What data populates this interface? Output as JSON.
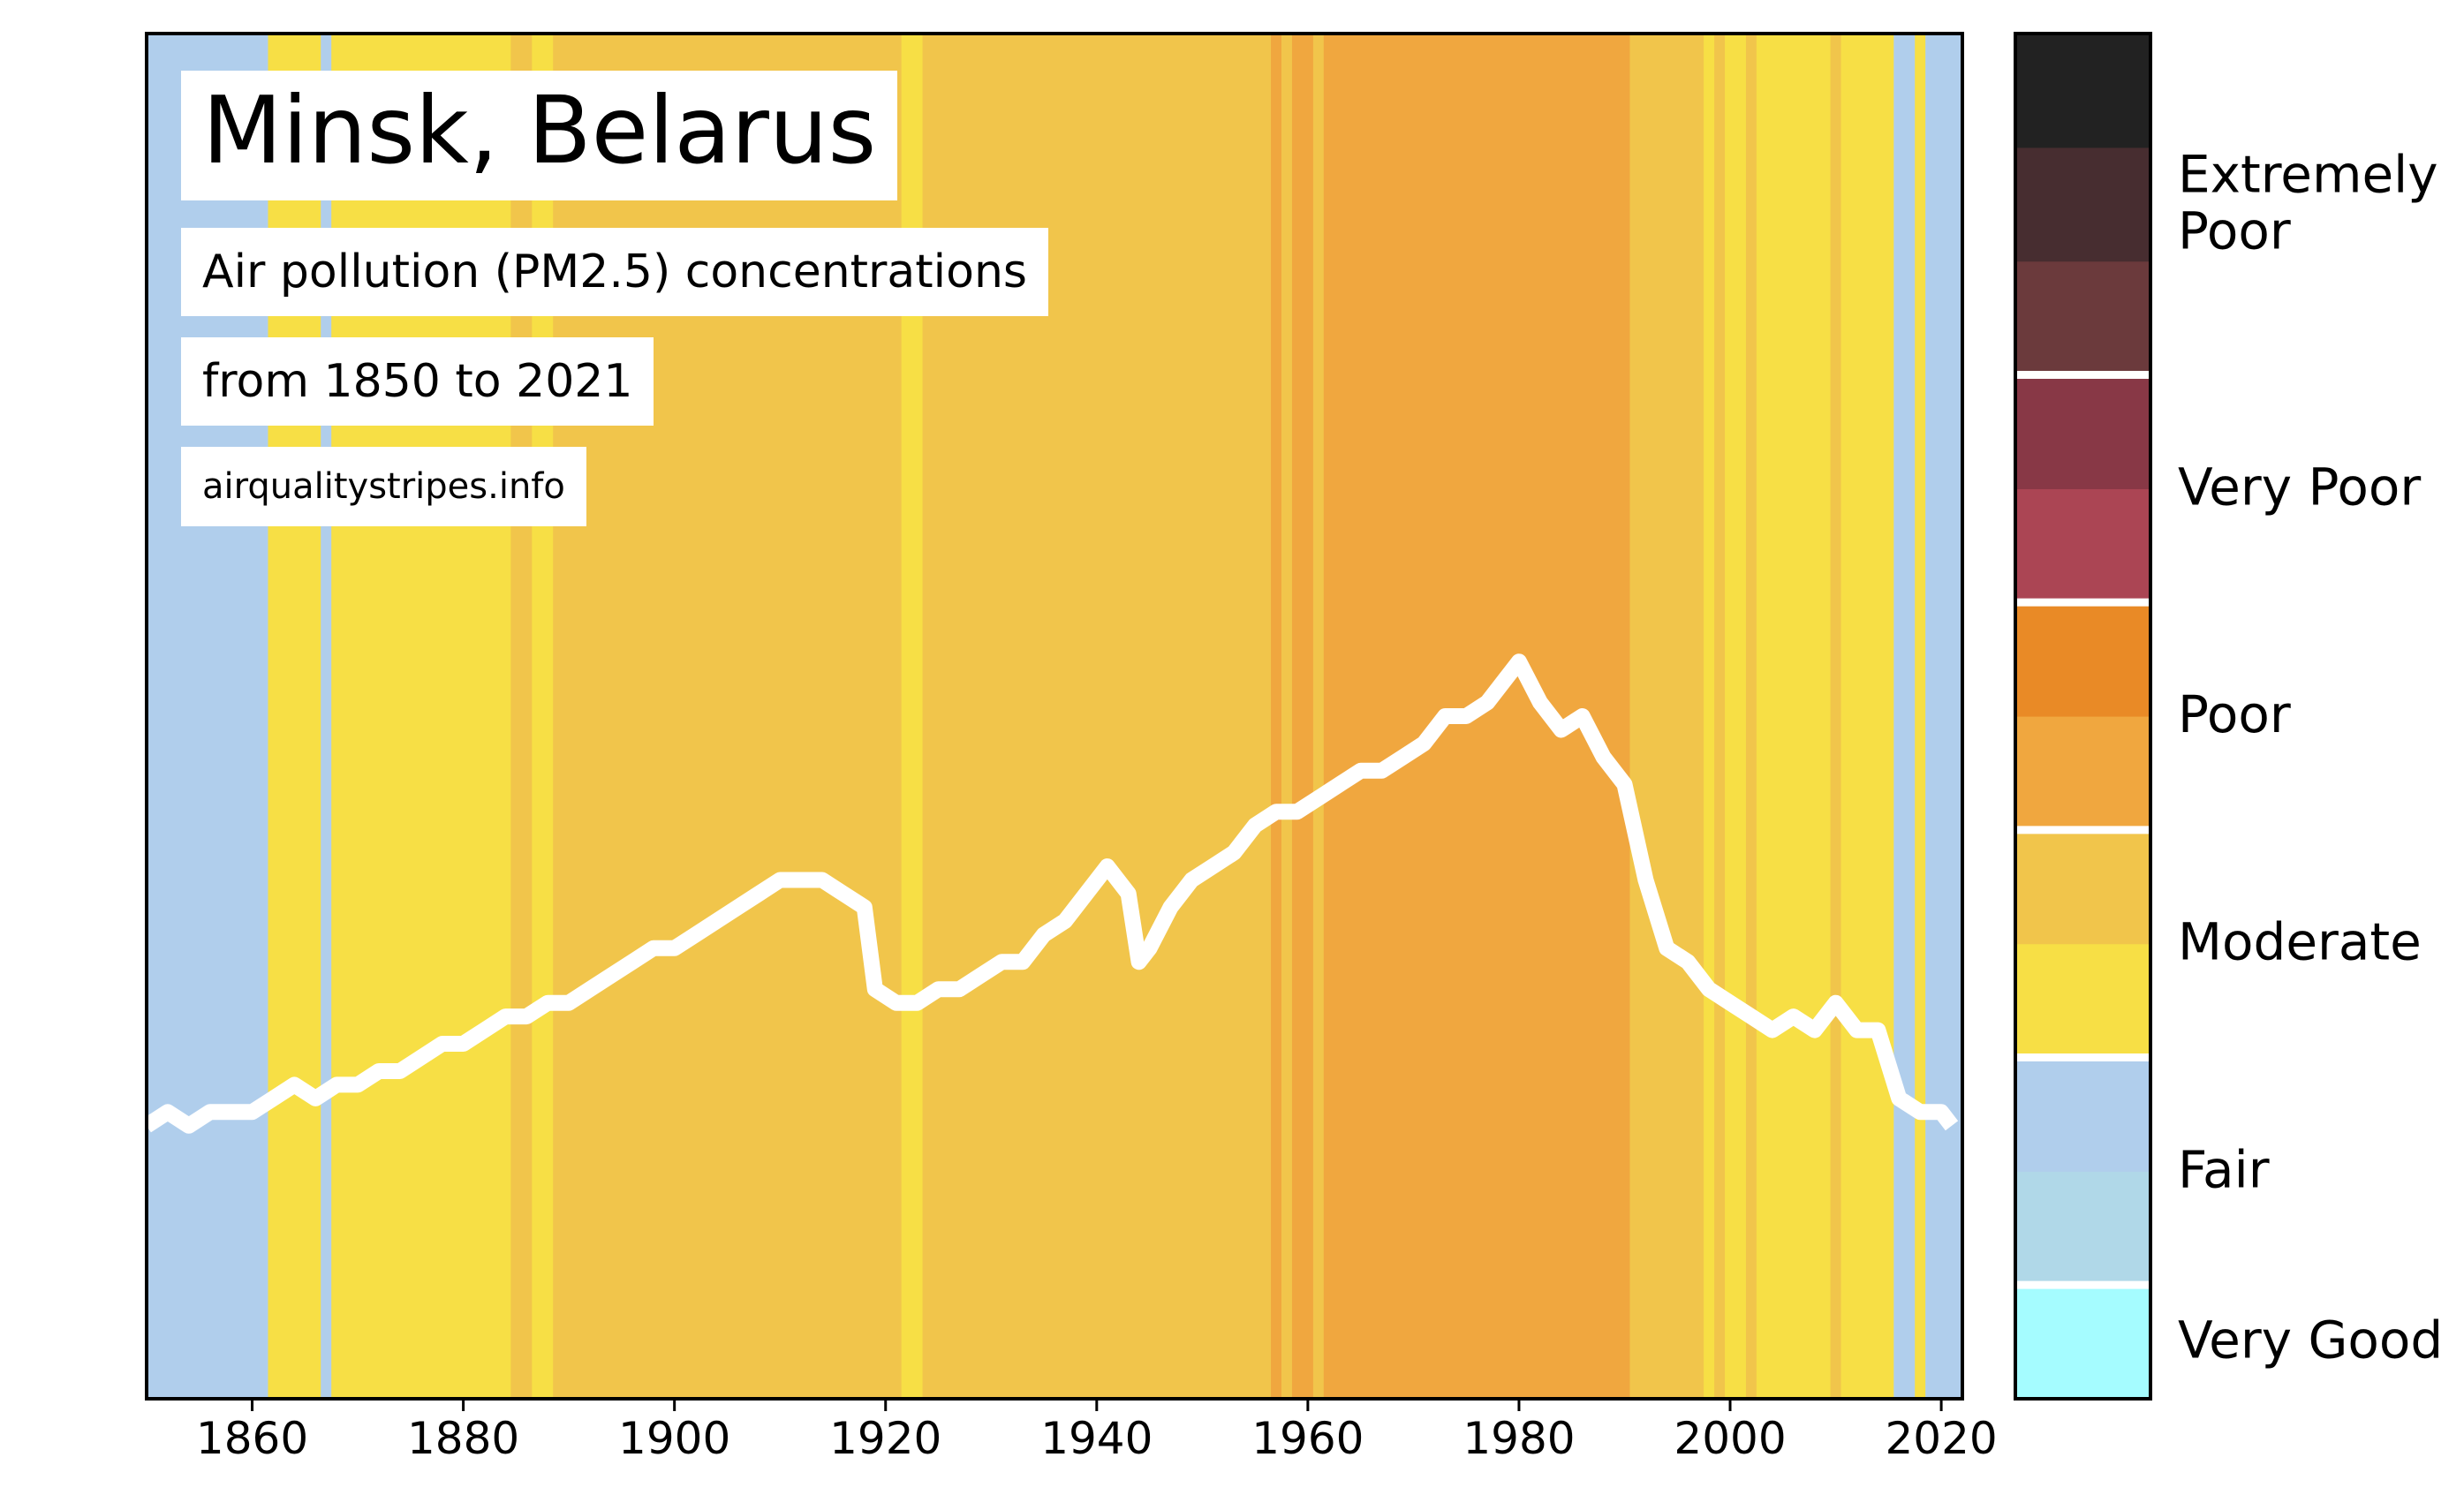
{
  "title": "Minsk, Belarus",
  "subtitle": "Air pollution (PM2.5) concentrations",
  "date_range": "from 1850 to 2021",
  "source": "airqualitystripes.info",
  "chart_data": {
    "type": "area",
    "xlim": [
      1850,
      2022
    ],
    "xticks": [
      "1860",
      "1880",
      "1900",
      "1920",
      "1940",
      "1960",
      "1980",
      "2000",
      "2020"
    ],
    "grid": false,
    "stripe_colors": {
      "fair": "#b0ceec",
      "moderate_low": "#f7df45",
      "moderate_high": "#f1c54b",
      "poor_low": "#f0a73f",
      "poor_high": "#e98a26"
    },
    "stripes": [
      {
        "from": 1850,
        "to": 1861.5,
        "level": "fair"
      },
      {
        "from": 1861.5,
        "to": 1866.5,
        "level": "moderate_low"
      },
      {
        "from": 1866.5,
        "to": 1867.5,
        "level": "fair"
      },
      {
        "from": 1867.5,
        "to": 1884.5,
        "level": "moderate_low"
      },
      {
        "from": 1884.5,
        "to": 1886.5,
        "level": "moderate_high"
      },
      {
        "from": 1886.5,
        "to": 1888.5,
        "level": "moderate_low"
      },
      {
        "from": 1888.5,
        "to": 1921.5,
        "level": "moderate_high"
      },
      {
        "from": 1921.5,
        "to": 1923.5,
        "level": "moderate_low"
      },
      {
        "from": 1923.5,
        "to": 1956.5,
        "level": "moderate_high"
      },
      {
        "from": 1956.5,
        "to": 1957.5,
        "level": "poor_low"
      },
      {
        "from": 1957.5,
        "to": 1958.5,
        "level": "moderate_high"
      },
      {
        "from": 1958.5,
        "to": 1960.5,
        "level": "poor_low"
      },
      {
        "from": 1960.5,
        "to": 1961.5,
        "level": "moderate_high"
      },
      {
        "from": 1961.5,
        "to": 1990.5,
        "level": "poor_low"
      },
      {
        "from": 1990.5,
        "to": 1997.5,
        "level": "moderate_high"
      },
      {
        "from": 1997.5,
        "to": 1998.5,
        "level": "moderate_low"
      },
      {
        "from": 1998.5,
        "to": 1999.5,
        "level": "moderate_high"
      },
      {
        "from": 1999.5,
        "to": 2001.5,
        "level": "moderate_low"
      },
      {
        "from": 2001.5,
        "to": 2002.5,
        "level": "moderate_high"
      },
      {
        "from": 2002.5,
        "to": 2009.5,
        "level": "moderate_low"
      },
      {
        "from": 2009.5,
        "to": 2010.5,
        "level": "moderate_high"
      },
      {
        "from": 2010.5,
        "to": 2015.5,
        "level": "moderate_low"
      },
      {
        "from": 2015.5,
        "to": 2017.5,
        "level": "fair"
      },
      {
        "from": 2017.5,
        "to": 2018.5,
        "level": "moderate_low"
      },
      {
        "from": 2018.5,
        "to": 2022,
        "level": "fair"
      }
    ],
    "series": [
      {
        "x": [
          1850,
          1852,
          1854,
          1856,
          1858,
          1860,
          1862,
          1864,
          1866,
          1868,
          1870,
          1872,
          1874,
          1876,
          1878,
          1880,
          1882,
          1884,
          1886,
          1888,
          1890,
          1892,
          1894,
          1896,
          1898,
          1900,
          1902,
          1904,
          1906,
          1908,
          1910,
          1912,
          1914,
          1916,
          1918,
          1919,
          1921,
          1923,
          1925,
          1927,
          1929,
          1931,
          1933,
          1935,
          1937,
          1939,
          1941,
          1943,
          1944,
          1945,
          1947,
          1949,
          1951,
          1953,
          1955,
          1957,
          1959,
          1961,
          1963,
          1965,
          1967,
          1969,
          1971,
          1973,
          1975,
          1977,
          1979,
          1980,
          1982,
          1984,
          1986,
          1988,
          1990,
          1992,
          1994,
          1996,
          1998,
          2000,
          2002,
          2004,
          2006,
          2008,
          2010,
          2012,
          2014,
          2016,
          2018,
          2020,
          2021
        ],
        "y": [
          0.2,
          0.21,
          0.2,
          0.21,
          0.21,
          0.21,
          0.22,
          0.23,
          0.22,
          0.23,
          0.23,
          0.24,
          0.24,
          0.25,
          0.26,
          0.26,
          0.27,
          0.28,
          0.28,
          0.29,
          0.29,
          0.3,
          0.31,
          0.32,
          0.33,
          0.33,
          0.34,
          0.35,
          0.36,
          0.37,
          0.38,
          0.38,
          0.38,
          0.37,
          0.36,
          0.3,
          0.29,
          0.29,
          0.3,
          0.3,
          0.31,
          0.32,
          0.32,
          0.34,
          0.35,
          0.37,
          0.39,
          0.37,
          0.32,
          0.33,
          0.36,
          0.38,
          0.39,
          0.4,
          0.42,
          0.43,
          0.43,
          0.44,
          0.45,
          0.46,
          0.46,
          0.47,
          0.48,
          0.5,
          0.5,
          0.51,
          0.53,
          0.54,
          0.51,
          0.49,
          0.5,
          0.47,
          0.45,
          0.38,
          0.33,
          0.32,
          0.3,
          0.29,
          0.28,
          0.27,
          0.28,
          0.27,
          0.29,
          0.27,
          0.27,
          0.22,
          0.21,
          0.21,
          0.2
        ]
      }
    ],
    "colorbar": {
      "bands": [
        "#a5fcff",
        "#b0d8e8",
        "#b0ceec",
        "#f7df45",
        "#f1c54b",
        "#f0a73f",
        "#e98a26",
        "#ab4554",
        "#883846",
        "#6b3a3c",
        "#472d30",
        "#222222"
      ],
      "labels": [
        {
          "text": "Very Good",
          "from": 0,
          "to": 1
        },
        {
          "text": "Fair",
          "from": 1,
          "to": 3
        },
        {
          "text": "Moderate",
          "from": 3,
          "to": 5
        },
        {
          "text": "Poor",
          "from": 5,
          "to": 7
        },
        {
          "text": "Very Poor",
          "from": 7,
          "to": 9
        },
        {
          "text": "Extremely\nPoor",
          "from": 9,
          "to": 12
        }
      ],
      "separators": [
        1,
        3,
        5,
        7,
        9
      ]
    }
  }
}
